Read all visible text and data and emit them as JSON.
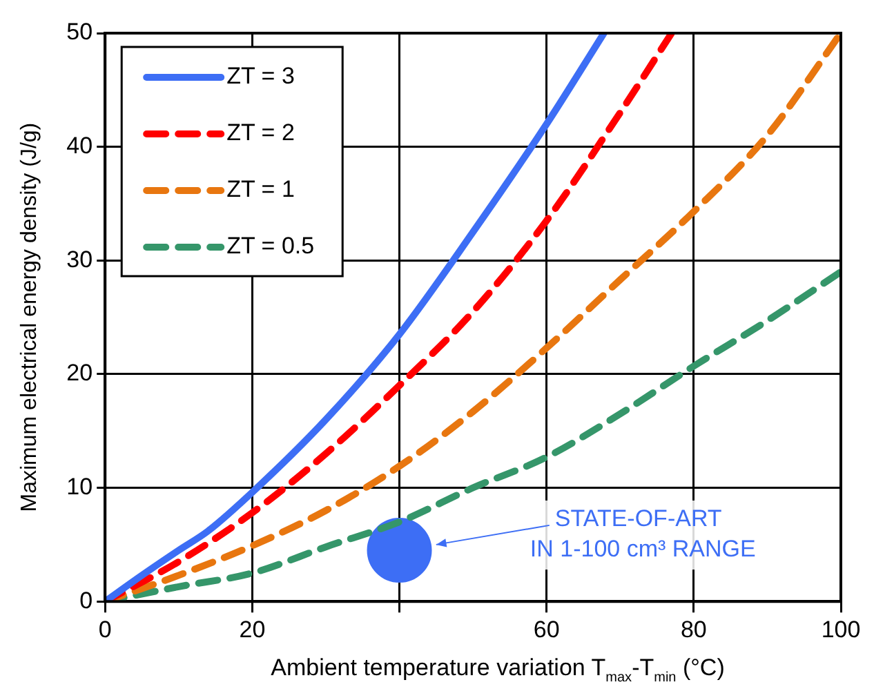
{
  "chart_data": {
    "type": "line",
    "xlabel": "Ambient temperature variation  T$_{max}$-T$_{min}$ (°C)",
    "ylabel": "Maximum electrical energy density (J/g)",
    "xlim": [
      0,
      100
    ],
    "xticks": [
      0,
      20,
      {
        "value": 40,
        "label": null
      },
      60,
      80,
      100
    ],
    "ylim": [
      0,
      50
    ],
    "yticks": [
      0,
      10,
      20,
      30,
      40,
      50
    ],
    "grid": true,
    "legend": "top left",
    "marker": "none",
    "series": [
      {
        "name": "ZT = 3",
        "color": "#3d6ef5",
        "line_style": "solid",
        "x": [
          0,
          5,
          10,
          14,
          20,
          30,
          40,
          50,
          60,
          67.8
        ],
        "values": [
          0,
          2.3,
          4.5,
          6.2,
          9.6,
          16,
          23.5,
          32.5,
          42,
          50
        ]
      },
      {
        "name": "ZT = 2",
        "color": "#ff0000",
        "line_style": "dashed",
        "x": [
          0,
          10,
          20,
          30,
          40,
          50,
          60,
          70,
          77
        ],
        "values": [
          0,
          3.5,
          7.8,
          13,
          19,
          25.5,
          33.5,
          43,
          50
        ]
      },
      {
        "name": "ZT = 1",
        "color": "#e8760f",
        "line_style": "dashed",
        "x": [
          0,
          10,
          20,
          30,
          40,
          50,
          60,
          70,
          80,
          90,
          100
        ],
        "values": [
          0,
          2.3,
          4.9,
          8,
          11.9,
          16.7,
          22.3,
          28.3,
          34.3,
          41,
          50
        ]
      },
      {
        "name": "ZT = 0.5",
        "color": "#35966a",
        "line_style": "dashed",
        "x": [
          0,
          10,
          20,
          30,
          40,
          50,
          60,
          70,
          80,
          90,
          100
        ],
        "values": [
          0,
          1.3,
          2.5,
          4.8,
          7,
          10,
          12.7,
          16.5,
          20.7,
          24.7,
          29
        ]
      },
      {
        "type": "scatter",
        "color": "#3d6ef5",
        "marker": "circle",
        "x": [
          40
        ],
        "values": [
          4.5
        ]
      }
    ],
    "annotations": [
      {
        "text": "STATE-OF-ART\nIN 1-100 cm³ RANGE",
        "x": 45,
        "y": 5
      }
    ]
  }
}
